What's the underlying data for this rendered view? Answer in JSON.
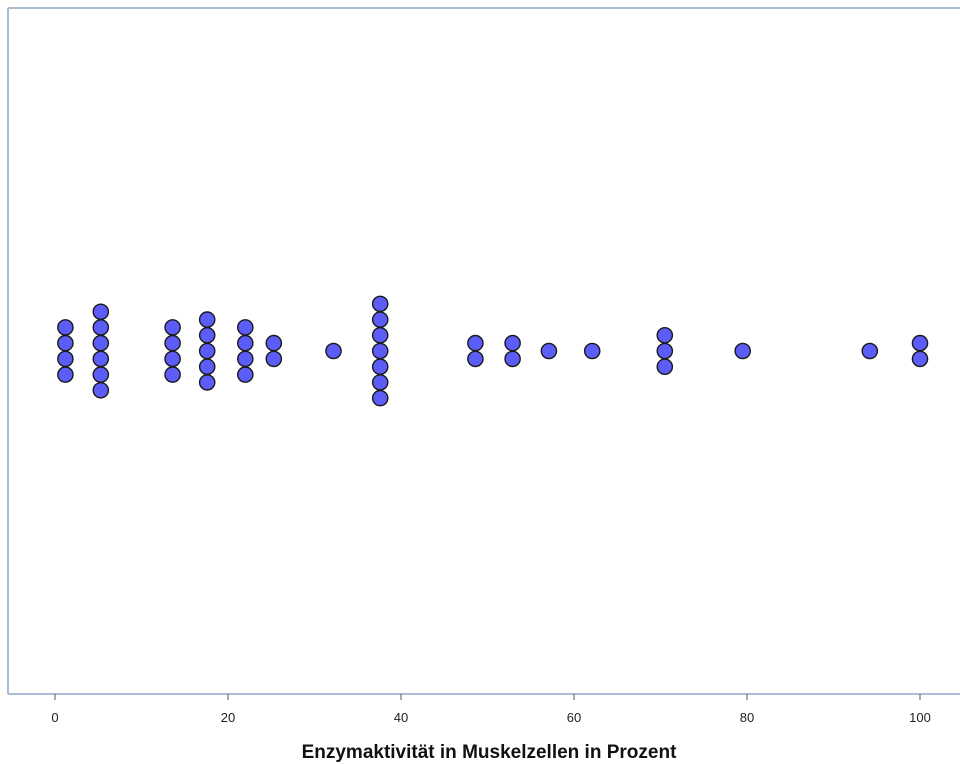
{
  "chart_data": {
    "type": "scatter",
    "subtype": "dot-plot",
    "title": "",
    "xlabel": "Enzymaktivität in Muskelzellen in Prozent",
    "ylabel": "",
    "xlim": [
      0,
      100
    ],
    "xticks": [
      0,
      20,
      40,
      60,
      80,
      100
    ],
    "grid": false,
    "legend": "none",
    "marker_color": "#5c5cf6",
    "marker_edge_color": "#1a1a1a",
    "axis_color": "#a9bdd3",
    "stacks": [
      {
        "x": 1.2,
        "count": 4
      },
      {
        "x": 5.3,
        "count": 6
      },
      {
        "x": 13.6,
        "count": 4
      },
      {
        "x": 17.6,
        "count": 5
      },
      {
        "x": 22.0,
        "count": 4
      },
      {
        "x": 25.3,
        "count": 2
      },
      {
        "x": 32.2,
        "count": 1
      },
      {
        "x": 37.6,
        "count": 7
      },
      {
        "x": 48.6,
        "count": 2
      },
      {
        "x": 52.9,
        "count": 2
      },
      {
        "x": 57.1,
        "count": 1
      },
      {
        "x": 62.1,
        "count": 1
      },
      {
        "x": 70.5,
        "count": 3
      },
      {
        "x": 79.5,
        "count": 1
      },
      {
        "x": 94.2,
        "count": 1
      },
      {
        "x": 100.0,
        "count": 2
      }
    ]
  }
}
